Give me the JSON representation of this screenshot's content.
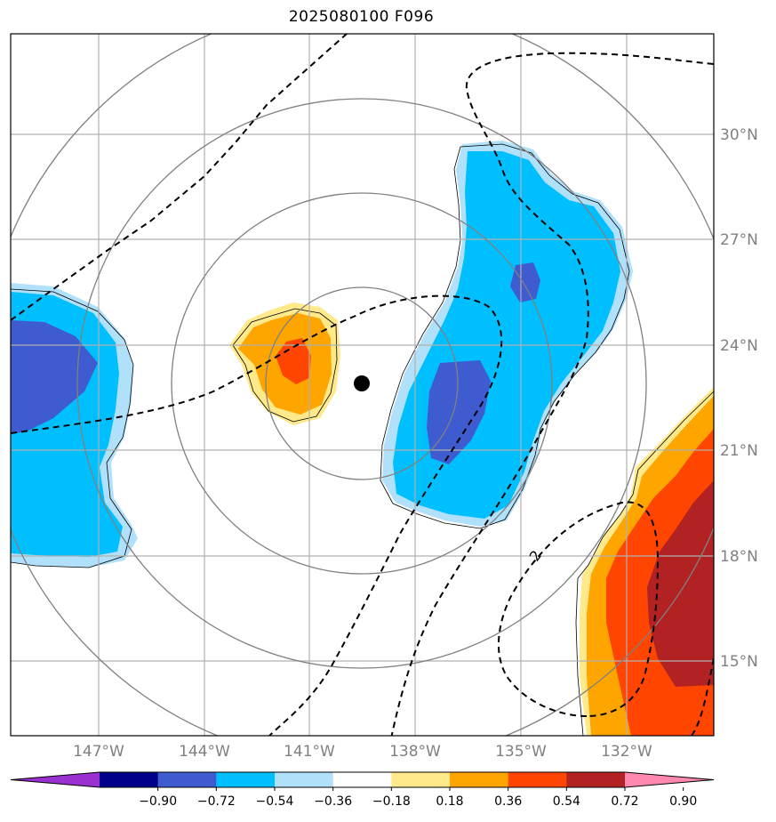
{
  "title": "2025080100 F096",
  "lat_labels": [
    "30°N",
    "27°N",
    "24°N",
    "21°N",
    "18°N",
    "15°N"
  ],
  "lon_labels": [
    "147°W",
    "144°W",
    "141°W",
    "138°W",
    "135°W",
    "132°W"
  ],
  "contour_label": "2",
  "colorbar": {
    "ticks": [
      "−0.90",
      "−0.72",
      "−0.54",
      "−0.36",
      "−0.18",
      "0.18",
      "0.36",
      "0.54",
      "0.72",
      "0.90"
    ],
    "colors": [
      "#9b30d0",
      "#00008b",
      "#3e5bd0",
      "#00bfff",
      "#b0e0fa",
      "#ffffff",
      "#ffe98a",
      "#ffa500",
      "#ff4500",
      "#b22222",
      "#ff88b0"
    ]
  },
  "center_marker": "storm-center",
  "colors": {
    "grid": "#b0b0b0",
    "range_rings": "#808080",
    "contour": "#000000"
  }
}
